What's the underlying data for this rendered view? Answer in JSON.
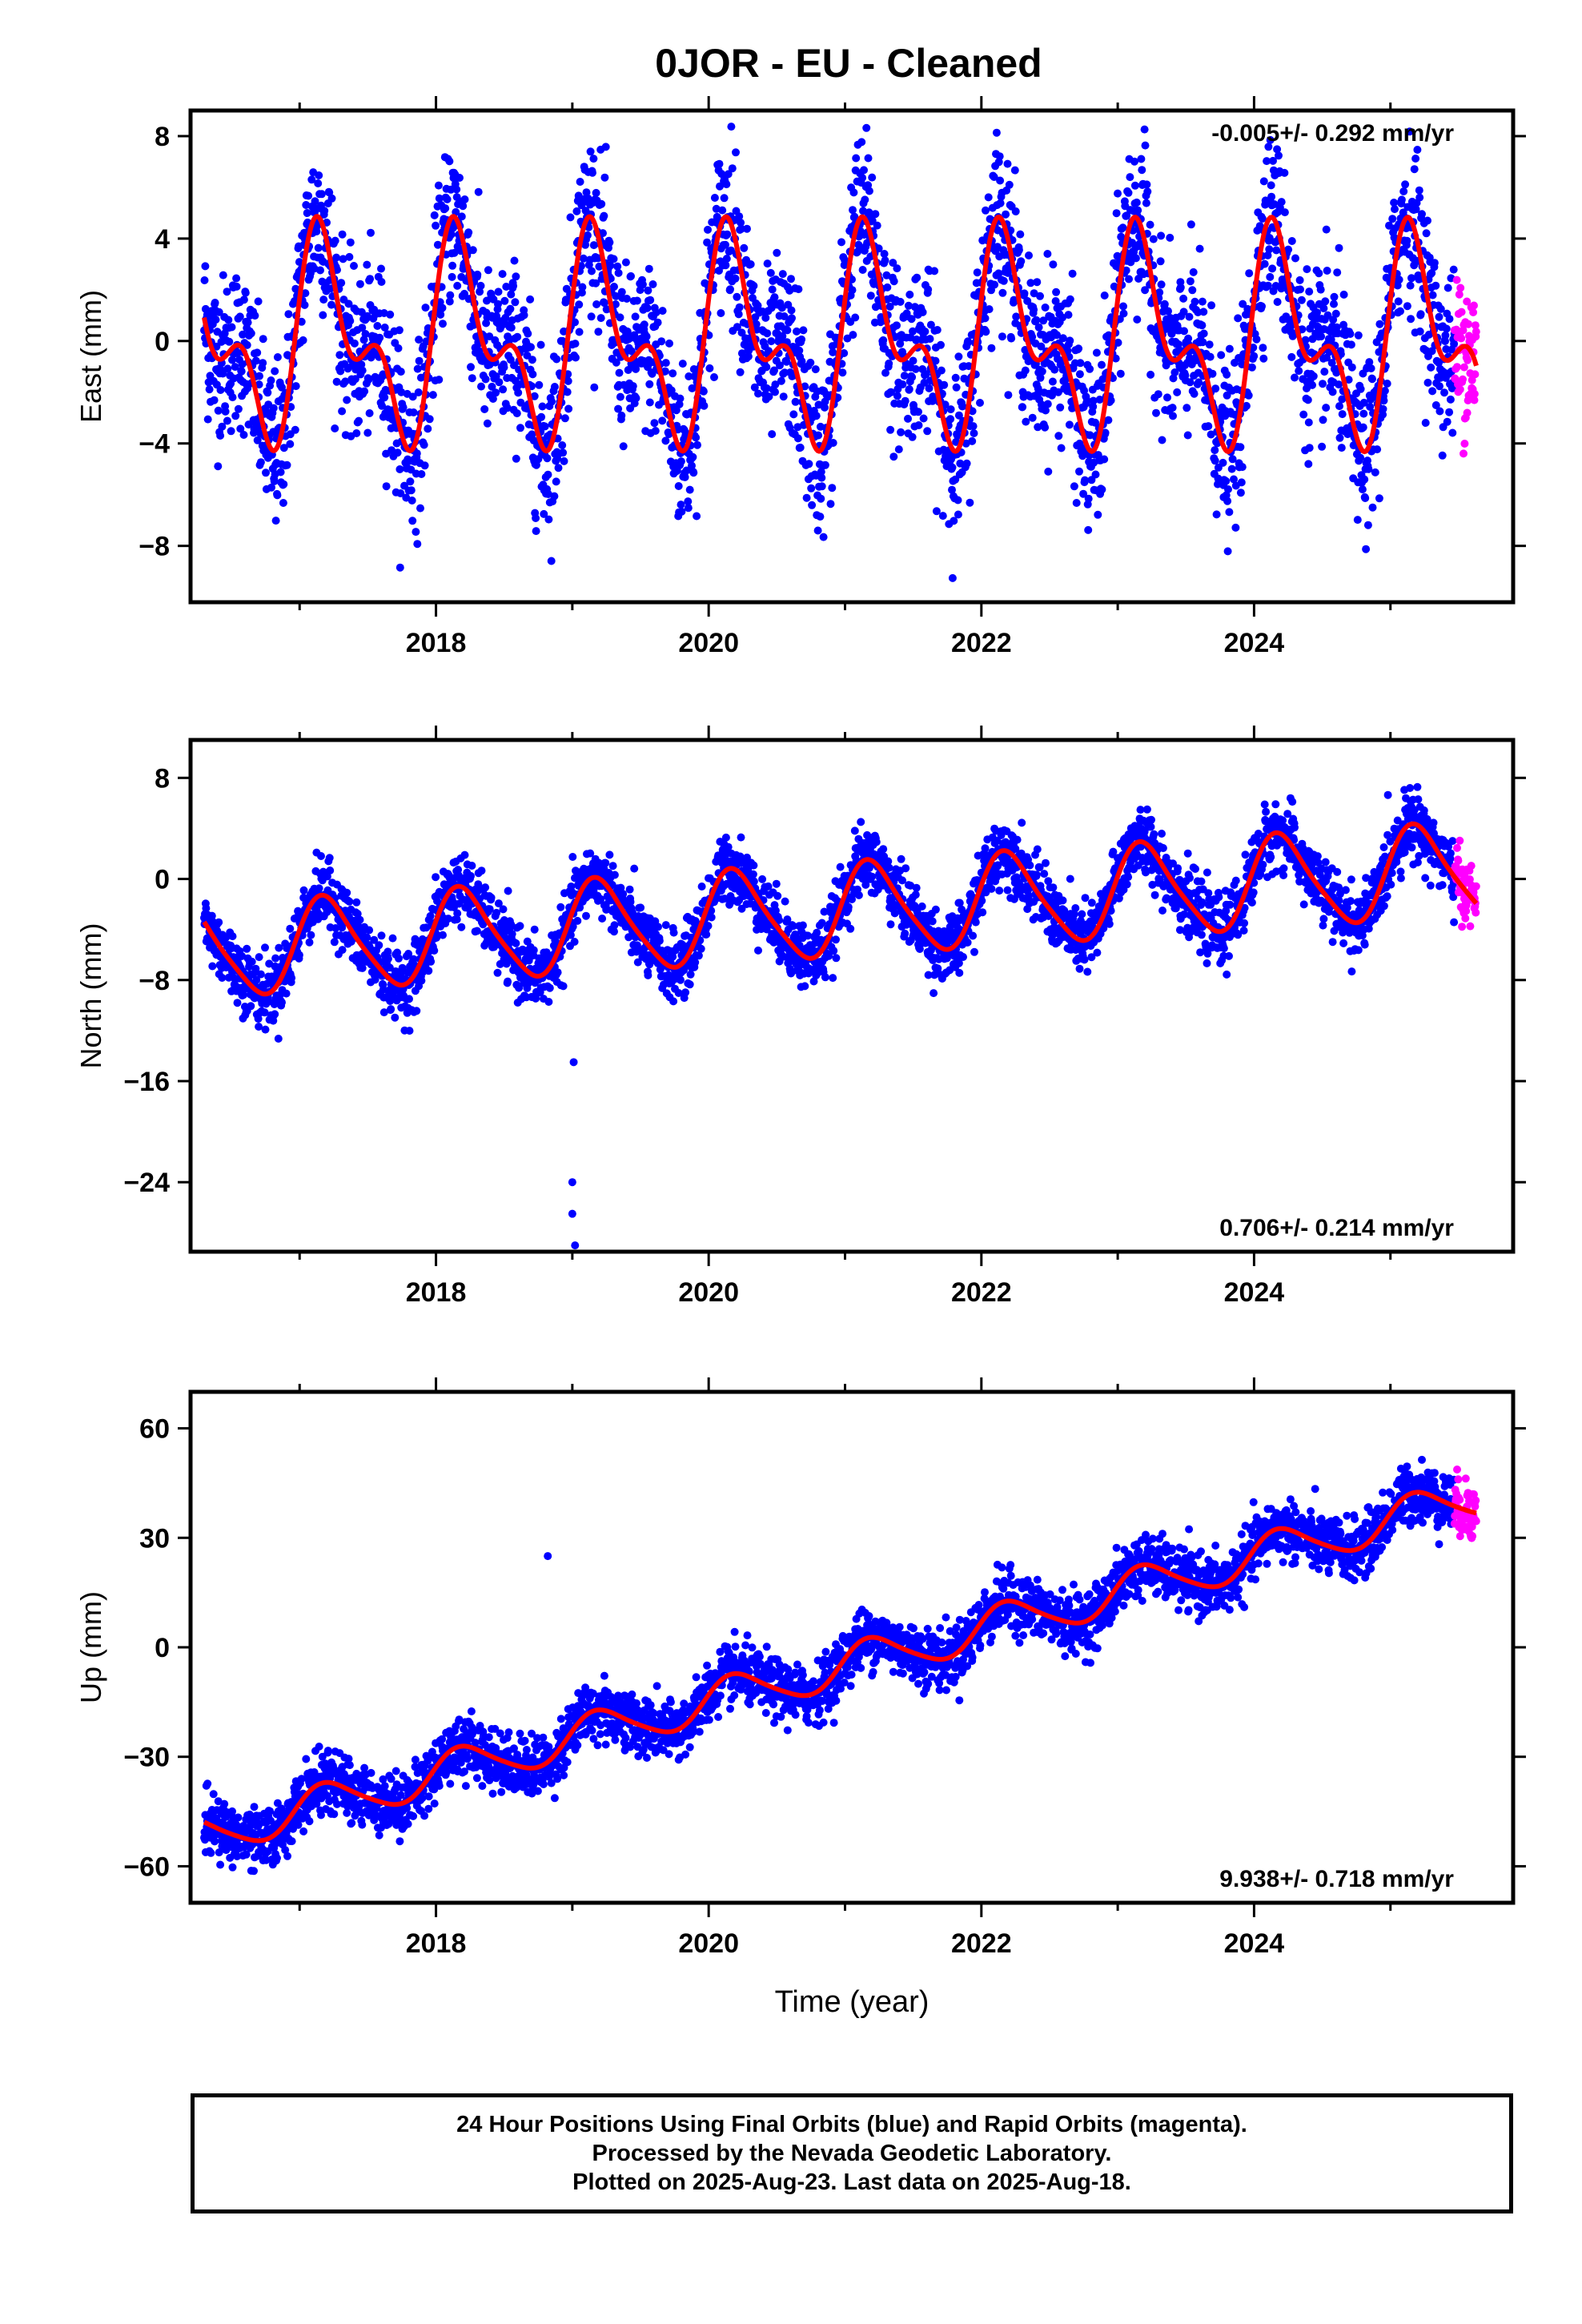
{
  "title": "0JOR  - EU - Cleaned",
  "colors": {
    "final": "#0000ff",
    "rapid": "#ff00ff",
    "model": "#ff0000",
    "frame": "#000000"
  },
  "chart_data": [
    {
      "type": "scatter",
      "title": "0JOR  - EU - Cleaned",
      "ylabel": "East (mm)",
      "xlabel": "",
      "xlim": [
        2016.2,
        2025.9
      ],
      "ylim": [
        -10.2,
        9.0
      ],
      "xticks": [
        "2018",
        "2020",
        "2022",
        "2024"
      ],
      "yticks": [
        "8",
        "4",
        "0",
        "-4",
        "-8"
      ],
      "rate_label": "-0.005+/- 0.292 mm/yr",
      "rate_position": "top-right",
      "model": {
        "offset": 0.0,
        "rate": -0.005,
        "annual_amplitude": 3.2,
        "semiannual_amplitude": 2.1,
        "noise": 1.6
      },
      "series": [
        {
          "name": "Final Orbits",
          "x_range": [
            2016.3,
            2025.47
          ]
        },
        {
          "name": "Rapid Orbits",
          "x_range": [
            2025.47,
            2025.63
          ]
        },
        {
          "name": "Model",
          "x_range": [
            2016.3,
            2025.63
          ]
        }
      ]
    },
    {
      "type": "scatter",
      "ylabel": "North (mm)",
      "xlabel": "",
      "xlim": [
        2016.2,
        2025.9
      ],
      "ylim": [
        -29.5,
        11.0
      ],
      "xticks": [
        "2018",
        "2020",
        "2022",
        "2024"
      ],
      "yticks": [
        "8",
        "0",
        "-8",
        "-16",
        "-24"
      ],
      "rate_label": "0.706+/- 0.214 mm/yr",
      "rate_position": "bottom-right",
      "model": {
        "offset": -2.5,
        "rate": 0.706,
        "annual_amplitude": 3.6,
        "semiannual_amplitude": 0.6,
        "noise": 1.3
      },
      "outliers": [
        {
          "x": 2019.0,
          "y": -24.0
        },
        {
          "x": 2019.0,
          "y": -26.5
        },
        {
          "x": 2019.02,
          "y": -29.0
        },
        {
          "x": 2019.01,
          "y": -14.5
        }
      ],
      "series": [
        {
          "name": "Final Orbits",
          "x_range": [
            2016.3,
            2025.47
          ]
        },
        {
          "name": "Rapid Orbits",
          "x_range": [
            2025.47,
            2025.63
          ]
        },
        {
          "name": "Model",
          "x_range": [
            2016.3,
            2025.63
          ]
        }
      ]
    },
    {
      "type": "scatter",
      "ylabel": "Up (mm)",
      "xlabel": "Time (year)",
      "xlim": [
        2016.2,
        2025.9
      ],
      "ylim": [
        -70,
        70
      ],
      "xticks": [
        "2018",
        "2020",
        "2022",
        "2024"
      ],
      "yticks": [
        "60",
        "30",
        "0",
        "-30",
        "-60"
      ],
      "rate_label": "9.938+/- 0.718 mm/yr",
      "rate_position": "bottom-right",
      "model": {
        "offset": -5.0,
        "rate": 9.938,
        "annual_amplitude": 5.5,
        "semiannual_amplitude": 0.8,
        "noise": 4.0
      },
      "outliers": [
        {
          "x": 2018.82,
          "y": 25.0
        }
      ],
      "series": [
        {
          "name": "Final Orbits",
          "x_range": [
            2016.3,
            2025.47
          ]
        },
        {
          "name": "Rapid Orbits",
          "x_range": [
            2025.47,
            2025.63
          ]
        },
        {
          "name": "Model",
          "x_range": [
            2016.3,
            2025.63
          ]
        }
      ]
    }
  ],
  "footer": {
    "line1": "24 Hour Positions Using Final Orbits (blue) and Rapid Orbits (magenta).",
    "line2": "Processed by the Nevada Geodetic Laboratory.",
    "line3": "Plotted on 2025-Aug-23. Last data on 2025-Aug-18."
  }
}
